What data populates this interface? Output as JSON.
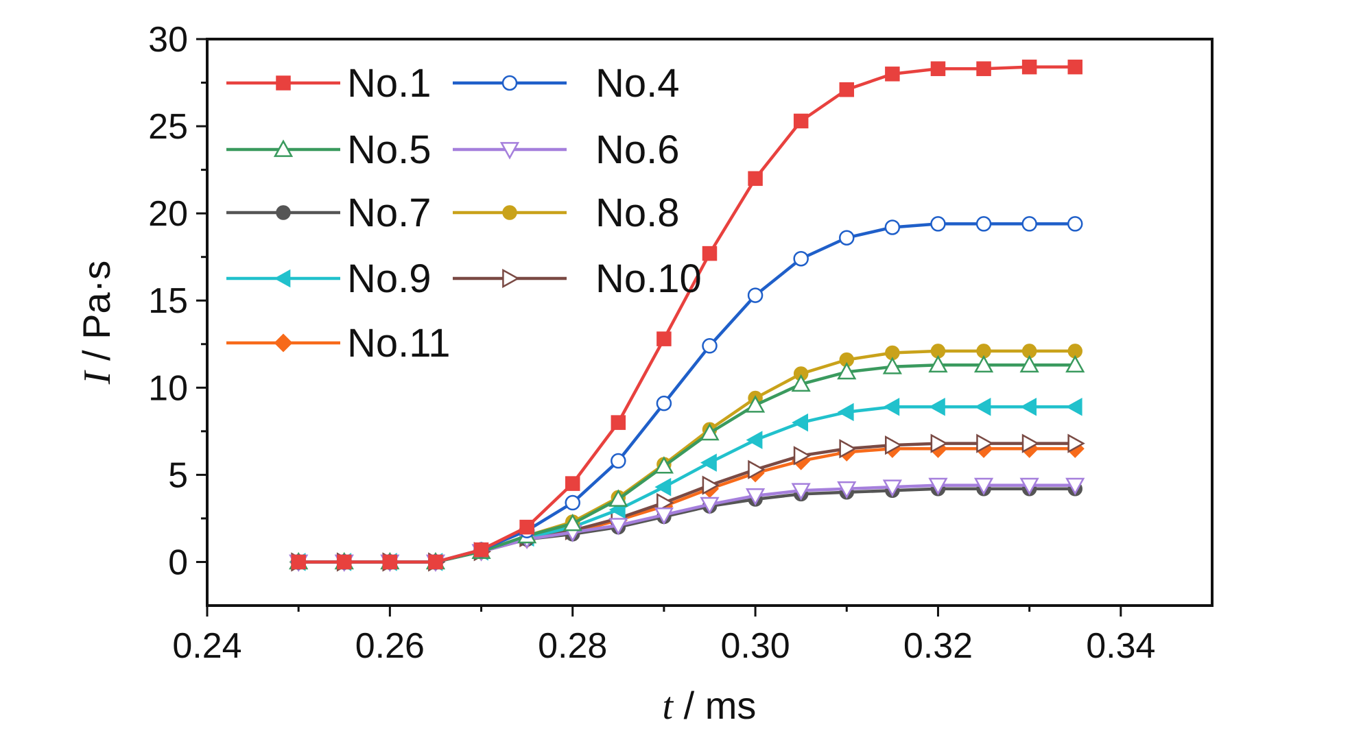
{
  "chart_data": {
    "type": "line",
    "xlabel_italic": "t",
    "xlabel_rest": " / ms",
    "ylabel_italic": "I",
    "ylabel_rest": " / Pa·s",
    "xlim": [
      0.24,
      0.35
    ],
    "ylim": [
      -2.5,
      30
    ],
    "xticks": [
      "0.24",
      "0.26",
      "0.28",
      "0.30",
      "0.32",
      "0.34"
    ],
    "yticks": [
      "0",
      "5",
      "10",
      "15",
      "20",
      "25",
      "30"
    ],
    "legend_position": "top-left",
    "x": [
      0.25,
      0.255,
      0.26,
      0.265,
      0.27,
      0.275,
      0.28,
      0.285,
      0.29,
      0.295,
      0.3,
      0.305,
      0.31,
      0.315,
      0.32,
      0.325,
      0.33,
      0.335
    ],
    "series": [
      {
        "name": "No.1",
        "color": "#e8413e",
        "marker": "square",
        "values": [
          0,
          0,
          0,
          0,
          0.7,
          2.0,
          4.5,
          8.0,
          12.8,
          17.7,
          22.0,
          25.3,
          27.1,
          28.0,
          28.3,
          28.3,
          28.4,
          28.4
        ]
      },
      {
        "name": "No.4",
        "color": "#1f5fc9",
        "marker": "circle-open",
        "values": [
          0,
          0,
          0,
          0,
          0.7,
          1.8,
          3.4,
          5.8,
          9.1,
          12.4,
          15.3,
          17.4,
          18.6,
          19.2,
          19.4,
          19.4,
          19.4,
          19.4
        ]
      },
      {
        "name": "No.5",
        "color": "#3a9a5e",
        "marker": "triangle-up-open",
        "values": [
          0,
          0,
          0,
          0,
          0.6,
          1.5,
          2.2,
          3.6,
          5.5,
          7.4,
          9.0,
          10.2,
          10.9,
          11.2,
          11.3,
          11.3,
          11.3,
          11.3
        ]
      },
      {
        "name": "No.6",
        "color": "#a57fdc",
        "marker": "triangle-down-open",
        "values": [
          0,
          0,
          0,
          0,
          0.6,
          1.3,
          1.7,
          2.1,
          2.7,
          3.3,
          3.8,
          4.1,
          4.2,
          4.3,
          4.4,
          4.4,
          4.4,
          4.4
        ]
      },
      {
        "name": "No.7",
        "color": "#555555",
        "marker": "circle",
        "values": [
          0,
          0,
          0,
          0,
          0.6,
          1.3,
          1.6,
          2.0,
          2.6,
          3.2,
          3.6,
          3.9,
          4.0,
          4.1,
          4.2,
          4.2,
          4.2,
          4.2
        ]
      },
      {
        "name": "No.8",
        "color": "#c9a21a",
        "marker": "circle",
        "values": [
          0,
          0,
          0,
          0,
          0.6,
          1.5,
          2.3,
          3.7,
          5.6,
          7.6,
          9.4,
          10.8,
          11.6,
          12.0,
          12.1,
          12.1,
          12.1,
          12.1
        ]
      },
      {
        "name": "No.9",
        "color": "#21c1cc",
        "marker": "triangle-left",
        "values": [
          0,
          0,
          0,
          0,
          0.6,
          1.4,
          2.0,
          3.0,
          4.3,
          5.7,
          7.0,
          8.0,
          8.6,
          8.9,
          8.9,
          8.9,
          8.9,
          8.9
        ]
      },
      {
        "name": "No.10",
        "color": "#7a4a44",
        "marker": "triangle-right-open",
        "values": [
          0,
          0,
          0,
          0,
          0.6,
          1.4,
          1.8,
          2.5,
          3.4,
          4.4,
          5.3,
          6.1,
          6.5,
          6.7,
          6.8,
          6.8,
          6.8,
          6.8
        ]
      },
      {
        "name": "No.11",
        "color": "#f76a1a",
        "marker": "diamond",
        "values": [
          0,
          0,
          0,
          0,
          0.6,
          1.3,
          1.7,
          2.4,
          3.2,
          4.2,
          5.1,
          5.8,
          6.3,
          6.5,
          6.5,
          6.5,
          6.5,
          6.5
        ]
      }
    ]
  }
}
